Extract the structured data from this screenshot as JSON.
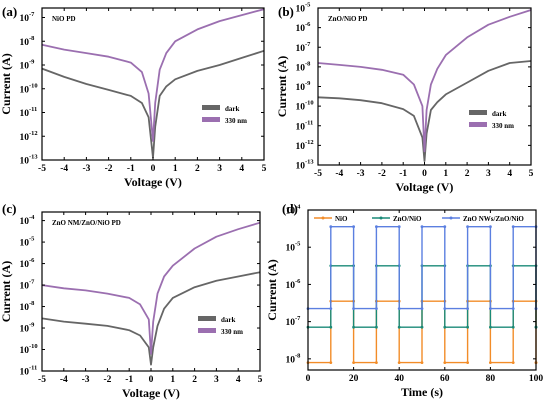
{
  "colors": {
    "dark": "#666666",
    "light": "#9b6fb0",
    "nio": "#f28c28",
    "zno_nio": "#1a8a78",
    "nws": "#5b7fe0"
  },
  "chart_data": [
    {
      "type": "line",
      "panel": "(a)",
      "sample_label": "NiO PD",
      "xlabel": "Voltage (V)",
      "ylabel": "Current (A)",
      "xlim": [
        -5,
        5
      ],
      "ylim_log10": [
        -13,
        -6.6
      ],
      "yscale": "log",
      "xticks": [
        "-5",
        "-4",
        "-3",
        "-2",
        "-1",
        "0",
        "1",
        "2",
        "3",
        "4",
        "5"
      ],
      "yticks": [
        {
          "base": "10",
          "exp": "-13"
        },
        {
          "base": "10",
          "exp": "-12"
        },
        {
          "base": "10",
          "exp": "-11"
        },
        {
          "base": "10",
          "exp": "-10"
        },
        {
          "base": "10",
          "exp": "-9"
        },
        {
          "base": "10",
          "exp": "-8"
        },
        {
          "base": "10",
          "exp": "-7"
        }
      ],
      "legend_position": "bottom-right",
      "grid": false,
      "series": [
        {
          "name": "dark",
          "color_key": "dark",
          "x": [
            -5,
            -4,
            -3,
            -2,
            -1,
            -0.5,
            -0.2,
            0,
            0.1,
            0.3,
            0.6,
            1,
            2,
            3,
            4,
            5
          ],
          "y_log10": [
            -9.15,
            -9.5,
            -9.8,
            -10.05,
            -10.3,
            -10.6,
            -11.2,
            -12.9,
            -11.6,
            -10.3,
            -9.9,
            -9.6,
            -9.25,
            -9.0,
            -8.7,
            -8.4
          ]
        },
        {
          "name": "330 nm",
          "color_key": "light",
          "x": [
            -5,
            -4,
            -3,
            -2,
            -1,
            -0.5,
            -0.2,
            0,
            0.1,
            0.3,
            0.6,
            1,
            2,
            3,
            4,
            5
          ],
          "y_log10": [
            -8.15,
            -8.35,
            -8.5,
            -8.65,
            -8.9,
            -9.3,
            -10.2,
            -12.2,
            -10.6,
            -9.2,
            -8.5,
            -8.0,
            -7.5,
            -7.15,
            -6.9,
            -6.65
          ]
        }
      ]
    },
    {
      "type": "line",
      "panel": "(b)",
      "sample_label": "ZnO/NiO PD",
      "xlabel": "Voltage (V)",
      "ylabel": "Current (A)",
      "xlim": [
        -5,
        5
      ],
      "ylim_log10": [
        -13,
        -5
      ],
      "yscale": "log",
      "xticks": [
        "-5",
        "-4",
        "-3",
        "-2",
        "-1",
        "0",
        "1",
        "2",
        "3",
        "4",
        "5"
      ],
      "yticks": [
        {
          "base": "10",
          "exp": "-13"
        },
        {
          "base": "10",
          "exp": "-12"
        },
        {
          "base": "10",
          "exp": "-11"
        },
        {
          "base": "10",
          "exp": "-10"
        },
        {
          "base": "10",
          "exp": "-9"
        },
        {
          "base": "10",
          "exp": "-8"
        },
        {
          "base": "10",
          "exp": "-7"
        },
        {
          "base": "10",
          "exp": "-6"
        },
        {
          "base": "10",
          "exp": "-5"
        }
      ],
      "legend_position": "bottom-right",
      "grid": false,
      "series": [
        {
          "name": "dark",
          "color_key": "dark",
          "x": [
            -5,
            -4,
            -3,
            -2,
            -1,
            -0.5,
            -0.1,
            0,
            0.1,
            0.3,
            0.6,
            1,
            2,
            3,
            4,
            5
          ],
          "y_log10": [
            -9.55,
            -9.6,
            -9.7,
            -9.85,
            -10.15,
            -10.5,
            -11.6,
            -12.8,
            -11.4,
            -10.2,
            -9.8,
            -9.4,
            -8.8,
            -8.2,
            -7.8,
            -7.7
          ]
        },
        {
          "name": "330 nm",
          "color_key": "light",
          "x": [
            -5,
            -4,
            -3,
            -2,
            -1,
            -0.5,
            -0.1,
            0,
            0.1,
            0.3,
            0.6,
            1,
            2,
            3,
            4,
            5
          ],
          "y_log10": [
            -7.8,
            -7.9,
            -8.0,
            -8.15,
            -8.4,
            -8.9,
            -10.0,
            -12.3,
            -10.2,
            -8.9,
            -8.1,
            -7.4,
            -6.5,
            -5.85,
            -5.45,
            -5.1
          ]
        }
      ]
    },
    {
      "type": "line",
      "panel": "(c)",
      "sample_label": "ZnO NM/ZnO/NiO PD",
      "xlabel": "Voltage (V)",
      "ylabel": "Current (A)",
      "xlim": [
        -5,
        5
      ],
      "ylim_log10": [
        -11,
        -3.6
      ],
      "yscale": "log",
      "xticks": [
        "-5",
        "-4",
        "-3",
        "-2",
        "-1",
        "0",
        "1",
        "2",
        "3",
        "4",
        "5"
      ],
      "yticks": [
        {
          "base": "10",
          "exp": "-11"
        },
        {
          "base": "10",
          "exp": "-10"
        },
        {
          "base": "10",
          "exp": "-9"
        },
        {
          "base": "10",
          "exp": "-8"
        },
        {
          "base": "10",
          "exp": "-7"
        },
        {
          "base": "10",
          "exp": "-6"
        },
        {
          "base": "10",
          "exp": "-5"
        },
        {
          "base": "10",
          "exp": "-4"
        }
      ],
      "legend_position": "bottom-right",
      "grid": false,
      "series": [
        {
          "name": "dark",
          "color_key": "dark",
          "x": [
            -5,
            -4,
            -3,
            -2,
            -1,
            -0.5,
            -0.1,
            0,
            0.1,
            0.3,
            0.6,
            1,
            2,
            3,
            4,
            5
          ],
          "y_log10": [
            -8.55,
            -8.7,
            -8.8,
            -8.9,
            -9.1,
            -9.35,
            -9.9,
            -10.7,
            -9.9,
            -8.9,
            -8.1,
            -7.6,
            -7.1,
            -6.8,
            -6.6,
            -6.4
          ]
        },
        {
          "name": "330 nm",
          "color_key": "light",
          "x": [
            -5,
            -4,
            -3,
            -2,
            -1,
            -0.5,
            -0.1,
            0,
            0.1,
            0.3,
            0.6,
            1,
            2,
            3,
            4,
            5
          ],
          "y_log10": [
            -7.0,
            -7.15,
            -7.25,
            -7.4,
            -7.6,
            -7.9,
            -8.6,
            -10.2,
            -8.7,
            -7.4,
            -6.6,
            -6.1,
            -5.3,
            -4.75,
            -4.4,
            -4.1
          ]
        }
      ]
    },
    {
      "type": "line",
      "panel": "(d)",
      "xlabel": "Time (s)",
      "ylabel": "Current (A)",
      "xlim": [
        0,
        100
      ],
      "ylim_log10": [
        -8.3,
        -4
      ],
      "yscale": "log",
      "xticks": [
        "0",
        "20",
        "40",
        "60",
        "80",
        "100"
      ],
      "yticks": [
        {
          "base": "10",
          "exp": "-8"
        },
        {
          "base": "10",
          "exp": "-7"
        },
        {
          "base": "10",
          "exp": "-6"
        },
        {
          "base": "10",
          "exp": "-5"
        },
        {
          "base": "10",
          "exp": "-4"
        }
      ],
      "legend_position": "top",
      "grid": false,
      "on_intervals": [
        [
          10,
          20
        ],
        [
          30,
          40
        ],
        [
          50,
          60
        ],
        [
          70,
          80
        ],
        [
          90,
          100
        ]
      ],
      "series": [
        {
          "name": "NiO",
          "color_key": "nio",
          "off_log10": -8.1,
          "on_log10": -6.45
        },
        {
          "name": "ZnO/NiO",
          "color_key": "zno_nio",
          "off_log10": -7.15,
          "on_log10": -5.5
        },
        {
          "name": "ZnO NWs/ZnO/NiO",
          "color_key": "nws",
          "off_log10": -6.65,
          "on_log10": -4.45
        }
      ]
    }
  ]
}
